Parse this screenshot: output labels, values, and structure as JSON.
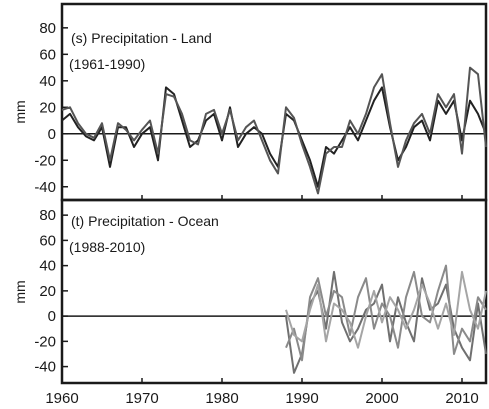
{
  "chart_data": [
    {
      "type": "line",
      "title": "(s) Precipitation - Land",
      "period": "(1961-1990)",
      "ylabel": "mm",
      "xlim": [
        1960,
        2013
      ],
      "ylim": [
        -50,
        98
      ],
      "yticks": [
        80,
        60,
        40,
        20,
        0,
        -20,
        -40
      ],
      "grid": false,
      "series": [
        {
          "color": "#222222",
          "x": [
            1960,
            1961,
            1962,
            1963,
            1964,
            1965,
            1966,
            1967,
            1968,
            1969,
            1970,
            1971,
            1972,
            1973,
            1974,
            1975,
            1976,
            1977,
            1978,
            1979,
            1980,
            1981,
            1982,
            1983,
            1984,
            1985,
            1986,
            1987,
            1988,
            1989,
            1990,
            1991,
            1992,
            1993,
            1994,
            1995,
            1996,
            1997,
            1998,
            1999,
            2000,
            2001,
            2002,
            2003,
            2004,
            2005,
            2006,
            2007,
            2008,
            2009,
            2010,
            2011,
            2012,
            2013
          ],
          "values": [
            10,
            15,
            5,
            -2,
            -5,
            5,
            -25,
            5,
            5,
            -10,
            0,
            5,
            -20,
            35,
            30,
            10,
            -10,
            -5,
            10,
            15,
            -5,
            20,
            -10,
            0,
            5,
            0,
            -15,
            -25,
            15,
            10,
            -5,
            -20,
            -40,
            -10,
            -15,
            -5,
            5,
            -5,
            10,
            25,
            35,
            5,
            -20,
            -10,
            5,
            10,
            -5,
            25,
            15,
            25,
            -5,
            25,
            15,
            0
          ]
        },
        {
          "color": "#555555",
          "x": [
            1960,
            1961,
            1962,
            1963,
            1964,
            1965,
            1966,
            1967,
            1968,
            1969,
            1970,
            1971,
            1972,
            1973,
            1974,
            1975,
            1976,
            1977,
            1978,
            1979,
            1980,
            1981,
            1982,
            1983,
            1984,
            1985,
            1986,
            1987,
            1988,
            1989,
            1990,
            1991,
            1992,
            1993,
            1994,
            1995,
            1996,
            1997,
            1998,
            1999,
            2000,
            2001,
            2002,
            2003,
            2004,
            2005,
            2006,
            2007,
            2008,
            2009,
            2010,
            2011,
            2012,
            2013
          ],
          "values": [
            18,
            20,
            8,
            0,
            -3,
            8,
            -20,
            8,
            3,
            -5,
            3,
            10,
            -15,
            30,
            28,
            15,
            -5,
            -8,
            15,
            18,
            0,
            18,
            -5,
            5,
            10,
            -5,
            -20,
            -30,
            20,
            12,
            -8,
            -25,
            -45,
            -15,
            -10,
            -10,
            10,
            0,
            15,
            35,
            45,
            8,
            -25,
            -5,
            8,
            15,
            0,
            30,
            20,
            30,
            -15,
            50,
            45,
            -10
          ]
        }
      ]
    },
    {
      "type": "line",
      "title": "(t) Precipitation - Ocean",
      "period": "(1988-2010)",
      "ylabel": "mm",
      "xlim": [
        1960,
        2013
      ],
      "ylim": [
        -53,
        92
      ],
      "yticks": [
        80,
        60,
        40,
        20,
        0,
        -20,
        -40
      ],
      "grid": false,
      "series": [
        {
          "color": "#707070",
          "x": [
            1988,
            1989,
            1990,
            1991,
            1992,
            1993,
            1994,
            1995,
            1996,
            1997,
            1998,
            1999,
            2000,
            2001,
            2002,
            2003,
            2004,
            2005,
            2006,
            2007,
            2008,
            2009,
            2010,
            2011,
            2012,
            2013
          ],
          "values": [
            0,
            -45,
            -30,
            10,
            20,
            -10,
            35,
            -5,
            -20,
            -10,
            5,
            10,
            25,
            -20,
            15,
            -5,
            -20,
            30,
            5,
            10,
            25,
            -10,
            -25,
            -35,
            10,
            -30
          ]
        },
        {
          "color": "#8a8a8a",
          "x": [
            1988,
            1989,
            1990,
            1991,
            1992,
            1993,
            1994,
            1995,
            1996,
            1997,
            1998,
            1999,
            2000,
            2001,
            2002,
            2003,
            2004,
            2005,
            2006,
            2007,
            2008,
            2009,
            2010,
            2011,
            2012,
            2013
          ],
          "values": [
            -25,
            -10,
            -35,
            15,
            30,
            0,
            20,
            15,
            -15,
            15,
            30,
            -10,
            10,
            0,
            -25,
            15,
            35,
            0,
            -5,
            20,
            40,
            -30,
            -10,
            -20,
            15,
            5
          ]
        },
        {
          "color": "#a5a5a5",
          "x": [
            1988,
            1989,
            1990,
            1991,
            1992,
            1993,
            1994,
            1995,
            1996,
            1997,
            1998,
            1999,
            2000,
            2001,
            2002,
            2003,
            2004,
            2005,
            2006,
            2007,
            2008,
            2009,
            2010,
            2011,
            2012,
            2013
          ],
          "values": [
            5,
            -15,
            -20,
            5,
            25,
            -20,
            10,
            5,
            -5,
            -25,
            0,
            20,
            -5,
            15,
            5,
            -10,
            5,
            25,
            10,
            -10,
            10,
            -15,
            35,
            5,
            -10,
            20
          ]
        }
      ]
    }
  ],
  "x_axis": {
    "ticks": [
      1960,
      1970,
      1980,
      1990,
      2000,
      2010
    ]
  }
}
